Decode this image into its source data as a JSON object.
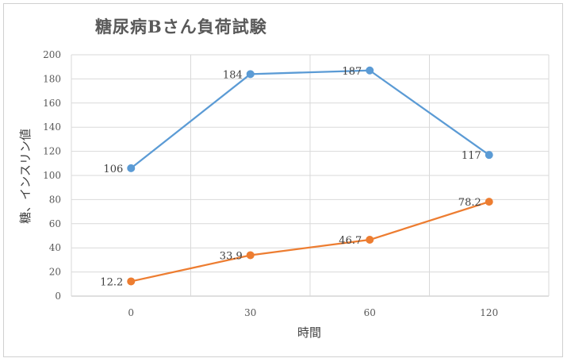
{
  "chart_data": {
    "type": "line",
    "title": "糖尿病Bさん負荷試験",
    "xlabel": "時間",
    "ylabel": "糖、インスリン値",
    "categories": [
      "0",
      "30",
      "60",
      "120"
    ],
    "ylim": [
      0,
      200
    ],
    "yticks": [
      "0",
      "20",
      "40",
      "60",
      "80",
      "100",
      "120",
      "140",
      "160",
      "180",
      "200"
    ],
    "grid": true,
    "series": [
      {
        "values": [
          106,
          184,
          187,
          117
        ],
        "labels": [
          "106",
          "184",
          "187",
          "117"
        ],
        "color": "#5B9BD5"
      },
      {
        "values": [
          12.2,
          33.9,
          46.7,
          78.2
        ],
        "labels": [
          "12.2",
          "33.9",
          "46.7",
          "78.2"
        ],
        "color": "#ED7D31"
      }
    ]
  }
}
